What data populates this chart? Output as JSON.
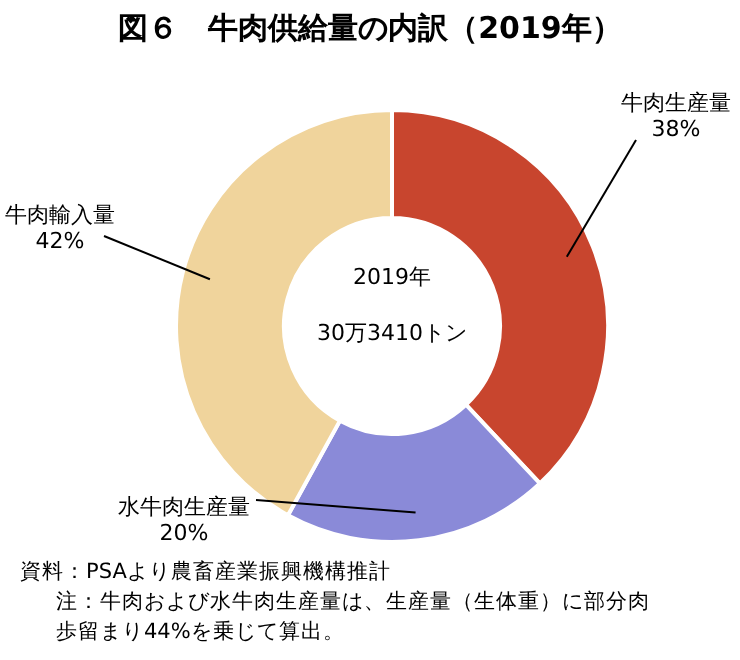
{
  "chart_data": {
    "type": "donut",
    "title": "図６　牛肉供給量の内訳（2019年）",
    "categories": [
      "牛肉生産量",
      "水牛肉生産量",
      "牛肉輸入量"
    ],
    "values": [
      38,
      20,
      42
    ],
    "value_labels": [
      "38%",
      "20%",
      "42%"
    ],
    "colors": [
      "#c8452e",
      "#8a8ad8",
      "#f0d49c"
    ],
    "annotations": [
      "2019年",
      "30万3410トン",
      "資料：PSAより農畜産業振興機構推計",
      "注：牛肉および水牛肉生産量は、生産量（生体重）に部分肉歩留まり44%を乗じて算出。"
    ]
  }
}
